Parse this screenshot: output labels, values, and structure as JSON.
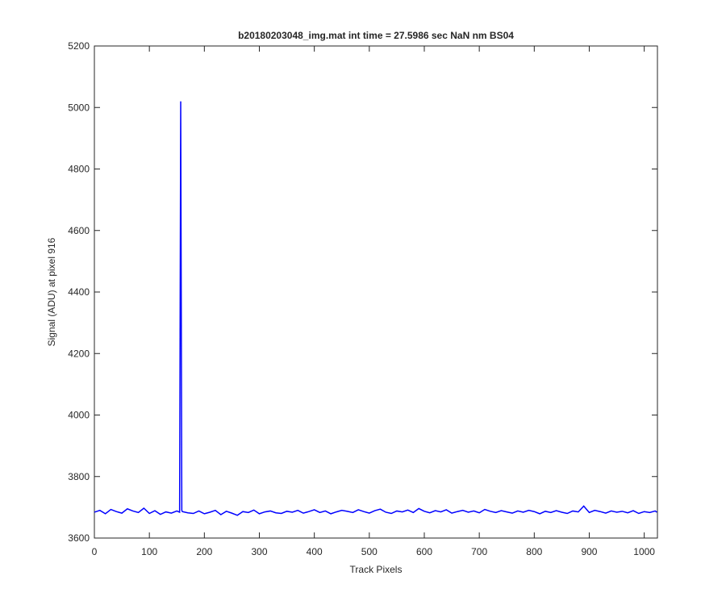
{
  "chart_data": {
    "type": "line",
    "title": "b20180203048_img.mat int time = 27.5986 sec  NaN nm BS04",
    "x_label": "Track Pixels",
    "y_label": "Signal (ADU) at pixel 916",
    "x": [
      0,
      10,
      20,
      30,
      40,
      50,
      60,
      70,
      80,
      90,
      100,
      110,
      120,
      130,
      140,
      150,
      155,
      157,
      159,
      160,
      170,
      180,
      190,
      200,
      210,
      220,
      230,
      240,
      250,
      260,
      270,
      280,
      290,
      300,
      310,
      320,
      330,
      340,
      350,
      360,
      370,
      380,
      390,
      400,
      410,
      420,
      430,
      440,
      450,
      460,
      470,
      480,
      490,
      500,
      510,
      520,
      530,
      540,
      550,
      560,
      570,
      580,
      590,
      600,
      610,
      620,
      630,
      640,
      650,
      660,
      670,
      680,
      690,
      700,
      710,
      720,
      730,
      740,
      750,
      760,
      770,
      780,
      790,
      800,
      810,
      820,
      830,
      840,
      850,
      860,
      870,
      880,
      890,
      900,
      910,
      920,
      930,
      940,
      950,
      960,
      970,
      980,
      990,
      1000,
      1010,
      1020,
      1023
    ],
    "series": [
      {
        "name": "signal",
        "color": "#0000ff",
        "values": [
          3684,
          3690,
          3679,
          3693,
          3686,
          3681,
          3695,
          3688,
          3683,
          3697,
          3680,
          3689,
          3677,
          3685,
          3681,
          3688,
          3684,
          5020,
          3690,
          3686,
          3682,
          3680,
          3688,
          3679,
          3684,
          3690,
          3676,
          3687,
          3681,
          3674,
          3686,
          3683,
          3691,
          3679,
          3685,
          3688,
          3682,
          3680,
          3687,
          3684,
          3690,
          3681,
          3686,
          3692,
          3683,
          3688,
          3679,
          3685,
          3690,
          3687,
          3683,
          3692,
          3686,
          3681,
          3689,
          3694,
          3684,
          3680,
          3688,
          3685,
          3691,
          3683,
          3696,
          3687,
          3682,
          3689,
          3685,
          3692,
          3681,
          3686,
          3690,
          3684,
          3688,
          3682,
          3693,
          3687,
          3683,
          3689,
          3685,
          3681,
          3688,
          3684,
          3690,
          3686,
          3679,
          3687,
          3683,
          3689,
          3684,
          3680,
          3688,
          3685,
          3704,
          3683,
          3690,
          3686,
          3681,
          3688,
          3684,
          3687,
          3682,
          3689,
          3680,
          3686,
          3683,
          3688,
          3684
        ]
      }
    ],
    "xlim": [
      0,
      1024
    ],
    "ylim": [
      3600,
      5200
    ],
    "xticks": [
      0,
      100,
      200,
      300,
      400,
      500,
      600,
      700,
      800,
      900,
      1000
    ],
    "yticks": [
      3600,
      3800,
      4000,
      4200,
      4400,
      4600,
      4800,
      5000,
      5200
    ],
    "grid": false
  }
}
